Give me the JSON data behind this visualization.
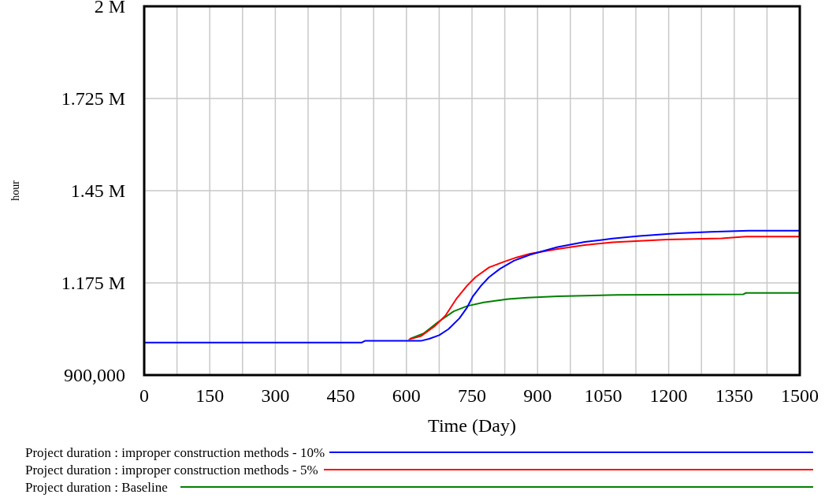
{
  "chart_data": {
    "type": "line",
    "xlabel": "Time (Day)",
    "ylabel": "hour",
    "xlim": [
      0,
      1500
    ],
    "xticks": [
      0,
      150,
      300,
      450,
      600,
      750,
      900,
      1050,
      1200,
      1350,
      1500
    ],
    "ylim": [
      900000,
      2000000
    ],
    "yticks": [
      {
        "value": 900000,
        "label": "900,000"
      },
      {
        "value": 1175000,
        "label": "1.175 M"
      },
      {
        "value": 1450000,
        "label": "1.45 M"
      },
      {
        "value": 1725000,
        "label": "1.725 M"
      },
      {
        "value": 2000000,
        "label": "2 M"
      }
    ],
    "grid": true,
    "legend": "bottom",
    "marker": "none",
    "line_style": "solid",
    "series": [
      {
        "name": "Project duration : improper construction methods - 10%",
        "color": "#0000ff",
        "x": [
          0,
          498,
          505,
          633,
          652,
          675,
          696,
          721,
          739,
          752,
          771,
          789,
          814,
          846,
          883,
          902,
          946,
          1008,
          1071,
          1133,
          1221,
          1296,
          1383,
          1500
        ],
        "values": [
          997000,
          997000,
          1002000,
          1002000,
          1008000,
          1019000,
          1037000,
          1069000,
          1102000,
          1135000,
          1167000,
          1192000,
          1217000,
          1241000,
          1259000,
          1266000,
          1282000,
          1297000,
          1307000,
          1315000,
          1323000,
          1327000,
          1331000,
          1331000
        ]
      },
      {
        "name": "Project duration : improper construction methods - 5%",
        "color": "#ff0000",
        "x": [
          605,
          633,
          664,
          689,
          714,
          739,
          758,
          789,
          821,
          852,
          883,
          946,
          1008,
          1071,
          1196,
          1321,
          1377,
          1500
        ],
        "values": [
          1006000,
          1016000,
          1045000,
          1077000,
          1127000,
          1167000,
          1192000,
          1221000,
          1237000,
          1251000,
          1262000,
          1276000,
          1288000,
          1296000,
          1304000,
          1308000,
          1313000,
          1313000
        ]
      },
      {
        "name": "Project duration : Baseline",
        "color": "#008000",
        "x": [
          608,
          639,
          671,
          708,
          739,
          777,
          833,
          877,
          946,
          1083,
          1371,
          1377,
          1500
        ],
        "values": [
          1008000,
          1024000,
          1057000,
          1090000,
          1106000,
          1117000,
          1127000,
          1131000,
          1135000,
          1139000,
          1141000,
          1145000,
          1145000
        ]
      }
    ]
  }
}
